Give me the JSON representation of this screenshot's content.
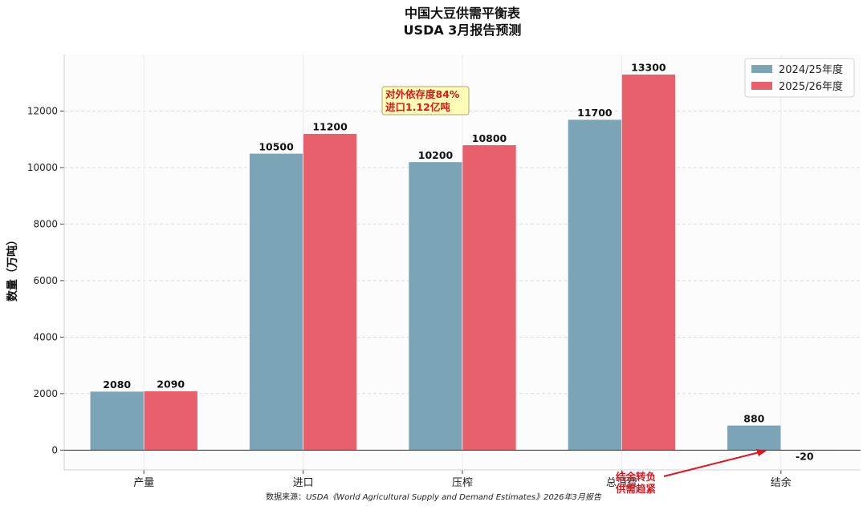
{
  "chart_data": {
    "type": "bar",
    "title": "中国大豆供需平衡表",
    "subtitle": "USDA 3月报告预测",
    "xlabel": "",
    "ylabel": "数量（万吨）",
    "categories": [
      "产量",
      "进口",
      "压榨",
      "总消费",
      "结余"
    ],
    "series": [
      {
        "name": "2024/25年度",
        "color": "#7ba4b7",
        "values": [
          2080,
          10500,
          10200,
          11700,
          880
        ]
      },
      {
        "name": "2025/26年度",
        "color": "#e8606b",
        "values": [
          2090,
          11200,
          10800,
          13300,
          -20
        ]
      }
    ],
    "ylim": [
      -700,
      14000
    ],
    "yticks": [
      0,
      2000,
      4000,
      6000,
      8000,
      10000,
      12000
    ],
    "legend_position": "top-right",
    "grid": true,
    "annotations": {
      "dependency_line1": "对外依存度84%",
      "dependency_line2": "进口1.12亿吨",
      "surplus_line1": "结余转负",
      "surplus_line2": "供需趋紧"
    },
    "source_prefix": "数据来源：",
    "source_italic": "USDA《World Agricultural Supply and Demand Estimates》2026年3月报告"
  }
}
